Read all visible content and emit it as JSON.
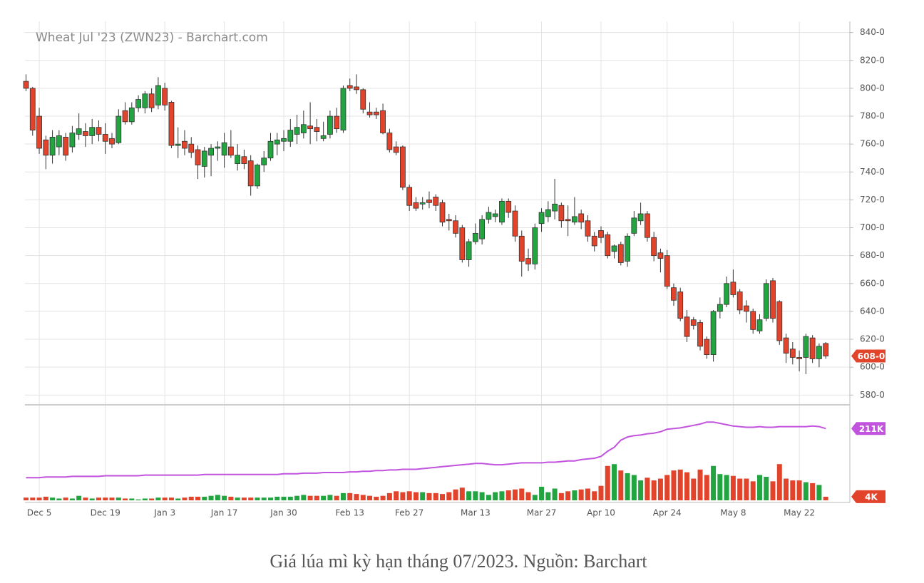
{
  "chart_data": {
    "type": "candlestick",
    "title": "Wheat Jul '23 (ZWN23) - Barchart.com",
    "categories": [
      null,
      null,
      "Dec 5",
      null,
      null,
      null,
      null,
      null,
      null,
      null,
      null,
      null,
      "Dec 19",
      null,
      null,
      null,
      null,
      null,
      null,
      null,
      null,
      "Jan 3",
      null,
      null,
      null,
      null,
      null,
      null,
      null,
      null,
      "Jan 17",
      null,
      null,
      null,
      null,
      null,
      null,
      null,
      null,
      "Jan 30",
      null,
      null,
      null,
      null,
      null,
      null,
      null,
      null,
      null,
      "Feb 13",
      null,
      null,
      null,
      null,
      null,
      null,
      null,
      null,
      "Feb 27",
      null,
      null,
      null,
      null,
      null,
      null,
      null,
      null,
      null,
      "Mar 13",
      null,
      null,
      null,
      null,
      null,
      null,
      null,
      null,
      null,
      "Mar 27",
      null,
      null,
      null,
      null,
      null,
      null,
      null,
      null,
      "Apr 10",
      null,
      null,
      null,
      null,
      null,
      null,
      null,
      null,
      null,
      "Apr 24",
      null,
      null,
      null,
      null,
      null,
      null,
      null,
      null,
      null,
      "May 8",
      null,
      null,
      null,
      null,
      null,
      null,
      null,
      null,
      null,
      "May 22",
      null,
      null,
      null,
      null
    ],
    "open": [
      805,
      800,
      780,
      763,
      752,
      758,
      765,
      758,
      767,
      769,
      766,
      772,
      767,
      764,
      761,
      784,
      776,
      786,
      786,
      796,
      788,
      800,
      790,
      759,
      762,
      760,
      756,
      744,
      752,
      757,
      752,
      758,
      746,
      751,
      748,
      730,
      745,
      750,
      760,
      762,
      762,
      767,
      768,
      773,
      772,
      764,
      767,
      780,
      770,
      802,
      801,
      799,
      783,
      783,
      784,
      768,
      758,
      758,
      729,
      718,
      717,
      720,
      722,
      718,
      706,
      705,
      700,
      677,
      690,
      692,
      706,
      708,
      704,
      719,
      712,
      694,
      678,
      674,
      703,
      708,
      712,
      716,
      706,
      704,
      710,
      705,
      694,
      698,
      695,
      683,
      688,
      676,
      696,
      705,
      710,
      693,
      682,
      680,
      657,
      654,
      636,
      634,
      632,
      620,
      609,
      640,
      645,
      661,
      654,
      644,
      640,
      626,
      635,
      662,
      647,
      621,
      613,
      607,
      607,
      621,
      606,
      617
    ],
    "high": [
      810,
      801,
      786,
      766,
      770,
      770,
      768,
      773,
      782,
      775,
      778,
      777,
      775,
      768,
      785,
      790,
      790,
      795,
      798,
      800,
      808,
      804,
      791,
      772,
      770,
      765,
      759,
      758,
      760,
      762,
      768,
      770,
      760,
      756,
      752,
      746,
      755,
      768,
      768,
      770,
      778,
      781,
      784,
      790,
      778,
      776,
      784,
      786,
      802,
      807,
      810,
      800,
      790,
      786,
      789,
      771,
      762,
      759,
      731,
      722,
      722,
      726,
      724,
      720,
      710,
      709,
      702,
      692,
      703,
      709,
      715,
      713,
      721,
      721,
      716,
      698,
      685,
      703,
      714,
      719,
      735,
      718,
      716,
      722,
      713,
      709,
      697,
      701,
      697,
      688,
      690,
      696,
      712,
      718,
      712,
      697,
      685,
      684,
      660,
      657,
      641,
      636,
      634,
      622,
      641,
      650,
      665,
      670,
      656,
      648,
      642,
      638,
      663,
      664,
      648,
      624,
      618,
      612,
      624,
      623,
      617,
      618
    ],
    "low": [
      798,
      766,
      753,
      742,
      746,
      752,
      748,
      754,
      763,
      758,
      760,
      762,
      753,
      757,
      760,
      774,
      774,
      783,
      782,
      783,
      785,
      784,
      757,
      750,
      752,
      750,
      735,
      736,
      737,
      748,
      743,
      750,
      741,
      742,
      723,
      728,
      740,
      748,
      752,
      755,
      758,
      760,
      764,
      760,
      762,
      762,
      764,
      768,
      768,
      798,
      796,
      782,
      779,
      778,
      767,
      754,
      752,
      727,
      712,
      712,
      713,
      714,
      712,
      701,
      698,
      693,
      675,
      672,
      688,
      688,
      703,
      704,
      702,
      707,
      690,
      665,
      669,
      670,
      697,
      704,
      706,
      700,
      694,
      702,
      699,
      690,
      683,
      689,
      678,
      678,
      673,
      672,
      694,
      702,
      690,
      676,
      668,
      656,
      644,
      633,
      618,
      627,
      612,
      606,
      604,
      635,
      643,
      650,
      638,
      632,
      624,
      624,
      633,
      632,
      616,
      603,
      602,
      597,
      595,
      603,
      600,
      606
    ],
    "close": [
      800,
      770,
      757,
      752,
      765,
      766,
      752,
      768,
      771,
      766,
      772,
      767,
      762,
      760,
      780,
      776,
      786,
      792,
      796,
      786,
      802,
      788,
      759,
      760,
      757,
      754,
      745,
      755,
      757,
      758,
      761,
      752,
      752,
      746,
      730,
      745,
      750,
      762,
      763,
      764,
      770,
      772,
      774,
      771,
      769,
      766,
      780,
      771,
      800,
      800,
      799,
      785,
      781,
      781,
      768,
      756,
      754,
      729,
      716,
      714,
      718,
      718,
      716,
      704,
      705,
      696,
      677,
      690,
      696,
      706,
      711,
      710,
      719,
      711,
      694,
      676,
      674,
      700,
      711,
      713,
      717,
      705,
      705,
      708,
      704,
      694,
      687,
      693,
      680,
      687,
      675,
      694,
      707,
      710,
      693,
      680,
      678,
      658,
      648,
      635,
      622,
      630,
      615,
      609,
      640,
      645,
      660,
      652,
      641,
      640,
      627,
      634,
      660,
      635,
      619,
      610,
      607,
      606,
      622,
      606,
      615,
      608
    ],
    "up_color": "#22a541",
    "down_color": "#e2432b",
    "ylim": [
      573,
      848
    ],
    "yticks": [
      {
        "value": 580,
        "label": "580-0"
      },
      {
        "value": 600,
        "label": "600-0"
      },
      {
        "value": 620,
        "label": "620-0"
      },
      {
        "value": 640,
        "label": "640-0"
      },
      {
        "value": 660,
        "label": "660-0"
      },
      {
        "value": 680,
        "label": "680-0"
      },
      {
        "value": 700,
        "label": "700-0"
      },
      {
        "value": 720,
        "label": "720-0"
      },
      {
        "value": 740,
        "label": "740-0"
      },
      {
        "value": 760,
        "label": "760-0"
      },
      {
        "value": 780,
        "label": "780-0"
      },
      {
        "value": 800,
        "label": "800-0"
      },
      {
        "value": 820,
        "label": "820-0"
      },
      {
        "value": 840,
        "label": "840-0"
      }
    ],
    "grid": true,
    "last_price": {
      "value": 608,
      "label": "608-0"
    },
    "volume": {
      "values": [
        3,
        3,
        3,
        4,
        3,
        2,
        3,
        2,
        5,
        3,
        2,
        3,
        3,
        3,
        3,
        2,
        2,
        1,
        2,
        2,
        3,
        3,
        3,
        2,
        3,
        4,
        4,
        4,
        5,
        6,
        5,
        4,
        3,
        3,
        3,
        3,
        3,
        3,
        4,
        4,
        4,
        5,
        6,
        5,
        5,
        5,
        6,
        5,
        8,
        8,
        7,
        6,
        5,
        4,
        5,
        8,
        10,
        9,
        10,
        9,
        9,
        8,
        8,
        7,
        9,
        12,
        14,
        10,
        10,
        9,
        6,
        9,
        10,
        11,
        12,
        13,
        9,
        6,
        15,
        9,
        13,
        8,
        10,
        11,
        12,
        13,
        10,
        16,
        38,
        40,
        33,
        30,
        28,
        22,
        25,
        22,
        24,
        28,
        33,
        34,
        31,
        24,
        34,
        28,
        38,
        29,
        28,
        27,
        24,
        24,
        21,
        28,
        26,
        21,
        40,
        24,
        22,
        22,
        20,
        19,
        17,
        4
      ],
      "ylim": [
        0,
        100
      ],
      "last": {
        "value": 4,
        "label": "4K"
      }
    },
    "open_interest": {
      "values": [
        135,
        135,
        135,
        136,
        136,
        136,
        136,
        137,
        137,
        137,
        137,
        137,
        138,
        138,
        138,
        138,
        138,
        138,
        139,
        139,
        139,
        139,
        139,
        139,
        139,
        139,
        139,
        140,
        140,
        140,
        140,
        140,
        140,
        140,
        140,
        140,
        140,
        140,
        140,
        141,
        141,
        141,
        142,
        142,
        142,
        143,
        143,
        143,
        143,
        144,
        144,
        145,
        145,
        146,
        146,
        147,
        147,
        148,
        148,
        148,
        149,
        150,
        151,
        152,
        153,
        154,
        155,
        156,
        157,
        157,
        156,
        155,
        155,
        156,
        157,
        158,
        158,
        158,
        158,
        159,
        159,
        160,
        161,
        161,
        163,
        164,
        165,
        168,
        176,
        182,
        193,
        198,
        200,
        201,
        203,
        204,
        206,
        210,
        211,
        212,
        214,
        216,
        218,
        221,
        221,
        219,
        217,
        215,
        214,
        213,
        213,
        214,
        213,
        213,
        214,
        214,
        214,
        214,
        214,
        215,
        214,
        211
      ],
      "color": "#c253de",
      "ylim": [
        100,
        240
      ],
      "last": {
        "value": 211,
        "label": "211K"
      }
    }
  },
  "caption": "Giá lúa mì kỳ hạn tháng 07/2023. Nguồn: Barchart"
}
